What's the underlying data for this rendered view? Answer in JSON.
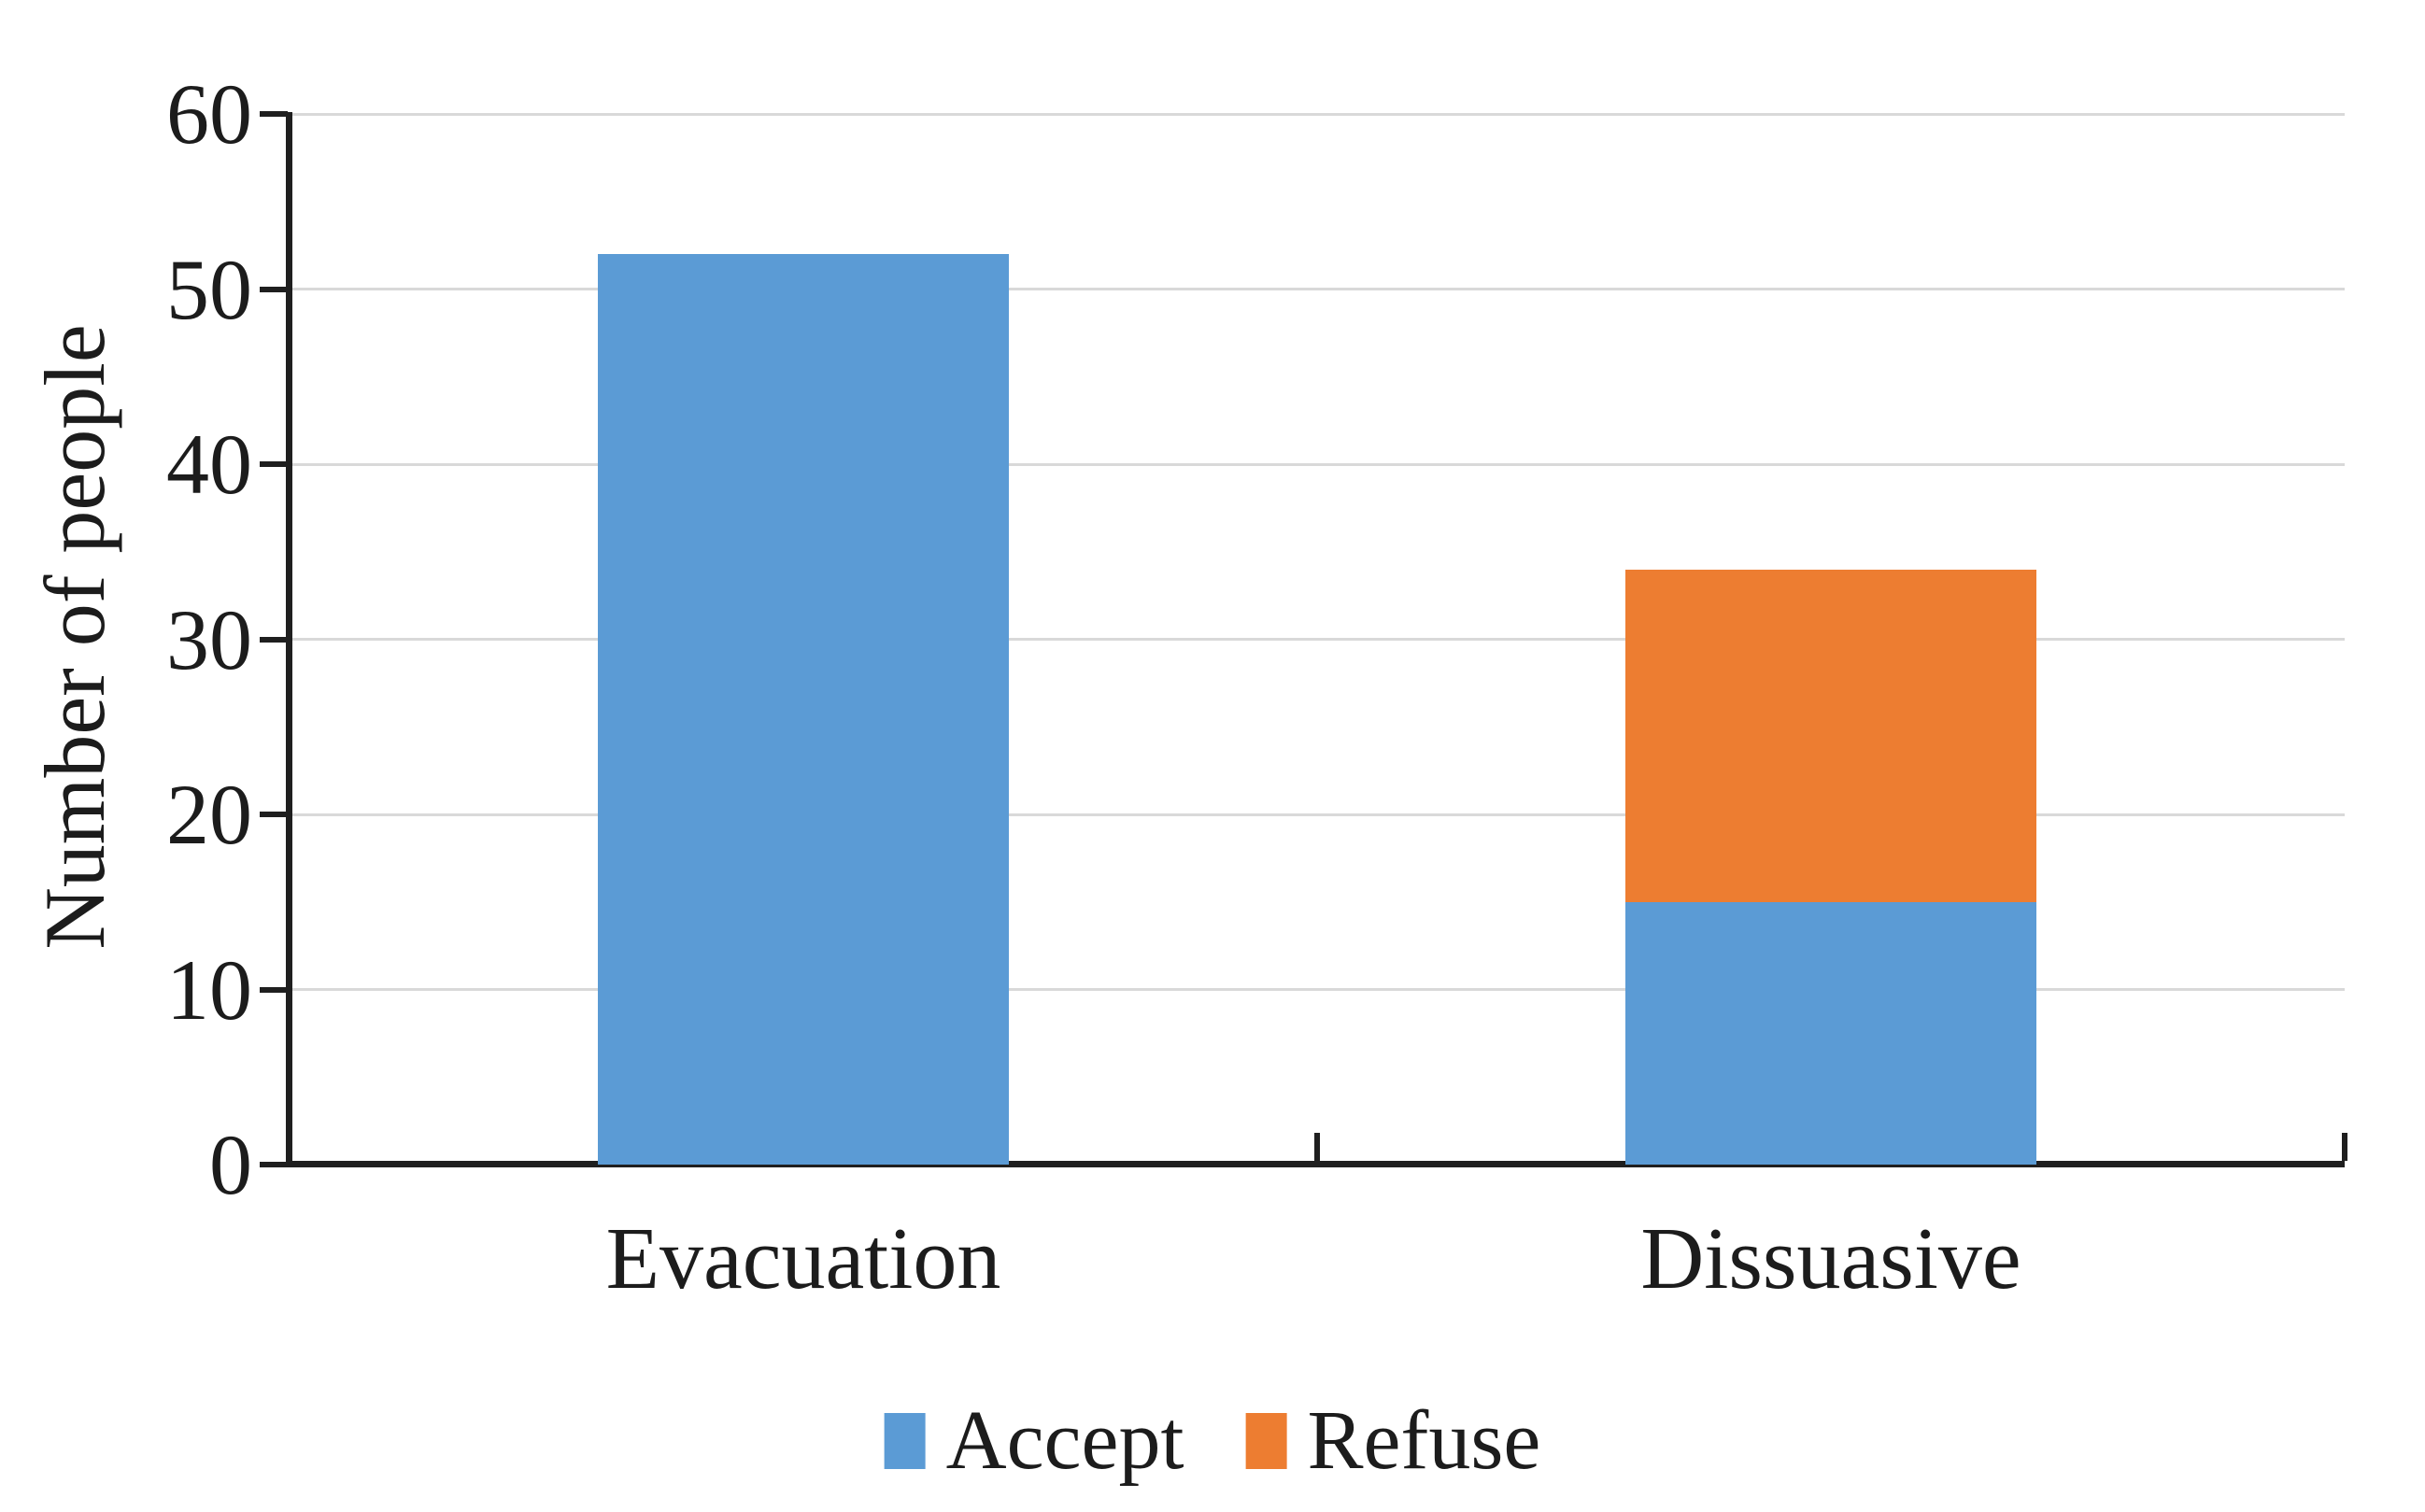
{
  "chart_data": {
    "type": "bar",
    "stacked": true,
    "categories": [
      "Evacuation",
      "Dissuasive"
    ],
    "series": [
      {
        "name": "Accept",
        "color": "#5B9BD5",
        "values": [
          52,
          15
        ]
      },
      {
        "name": "Refuse",
        "color": "#ED7D31",
        "values": [
          0,
          19
        ]
      }
    ],
    "title": "",
    "xlabel": "",
    "ylabel": "Number of people",
    "ylim": [
      0,
      60
    ],
    "yticks": [
      0,
      10,
      20,
      30,
      40,
      50,
      60
    ],
    "grid": "horizontal",
    "gridline_color": "#d9d9d9",
    "axis_color": "#1f1f1f",
    "legend_position": "bottom",
    "bar_width_fraction": 0.4
  }
}
